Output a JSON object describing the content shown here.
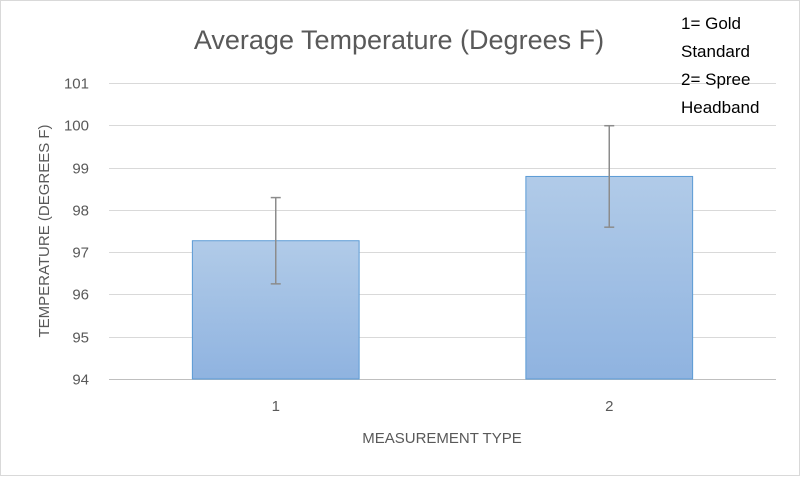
{
  "chart_data": {
    "type": "bar",
    "title": "Average Temperature (Degrees F)",
    "xlabel": "MEASUREMENT TYPE",
    "ylabel": "TEMPERATURE (DEGREES F)",
    "categories": [
      "1",
      "2"
    ],
    "values": [
      97.27,
      98.79
    ],
    "error": [
      1.02,
      1.2
    ],
    "ylim": [
      94,
      101
    ],
    "yticks": [
      94,
      95,
      96,
      97,
      98,
      99,
      100,
      101
    ],
    "grid": true,
    "bar_color": "#9dbde4",
    "bar_edge_color": "#5b9bd5",
    "annotation": [
      "1= Gold",
      "Standard",
      "2= Spree",
      "Headband"
    ]
  }
}
